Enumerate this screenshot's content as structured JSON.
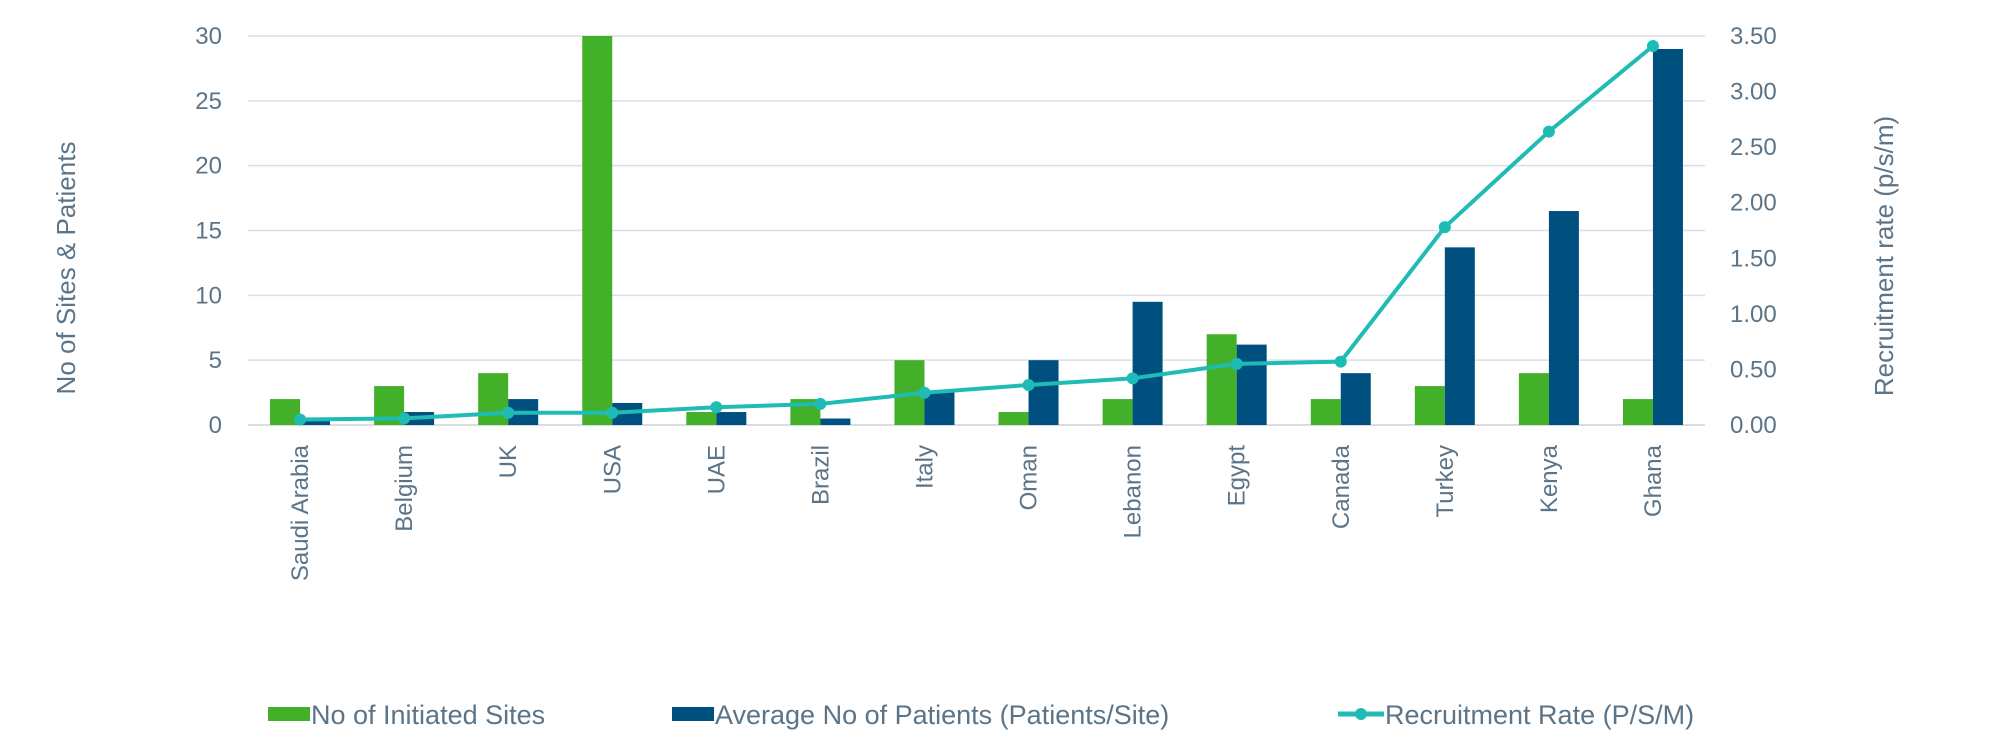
{
  "chart_data": {
    "type": "bar",
    "categories": [
      "Saudi Arabia",
      "Belgium",
      "UK",
      "USA",
      "UAE",
      "Brazil",
      "Italy",
      "Oman",
      "Lebanon",
      "Egypt",
      "Canada",
      "Turkey",
      "Kenya",
      "Ghana"
    ],
    "series": [
      {
        "name": "No of Initiated Sites",
        "type": "bar",
        "axis": "left",
        "color": "#43b02a",
        "values": [
          2,
          3,
          4,
          30,
          1,
          2,
          5,
          1,
          2,
          7,
          2,
          3,
          4,
          2
        ]
      },
      {
        "name": "Average No of Patients (Patients/Site)",
        "type": "bar",
        "axis": "left",
        "color": "#00507f",
        "values": [
          0.3,
          1,
          2,
          1.7,
          1,
          0.5,
          2.6,
          5,
          9.5,
          6.2,
          4,
          13.7,
          16.5,
          29
        ]
      },
      {
        "name": "Recruitment Rate (P/S/M)",
        "type": "line",
        "axis": "right",
        "color": "#1fbcb6",
        "values": [
          0.05,
          0.06,
          0.11,
          0.11,
          0.16,
          0.19,
          0.29,
          0.36,
          0.42,
          0.55,
          0.57,
          1.78,
          2.64,
          3.41
        ]
      }
    ],
    "ylabel": "No of Sites & Patients",
    "y2label": "Recruitment rate (p/s/m)",
    "ylim": [
      0,
      30
    ],
    "y2lim": [
      0,
      3.5
    ],
    "yticks": [
      "0",
      "5",
      "10",
      "15",
      "20",
      "25",
      "30"
    ],
    "y2ticks": [
      "0.00",
      "0.50",
      "1.00",
      "1.50",
      "2.00",
      "2.50",
      "3.00",
      "3.50"
    ],
    "grid": true,
    "legend_position": "bottom",
    "colors": {
      "text": "#5b7487",
      "grid": "#d9e0e4"
    }
  }
}
